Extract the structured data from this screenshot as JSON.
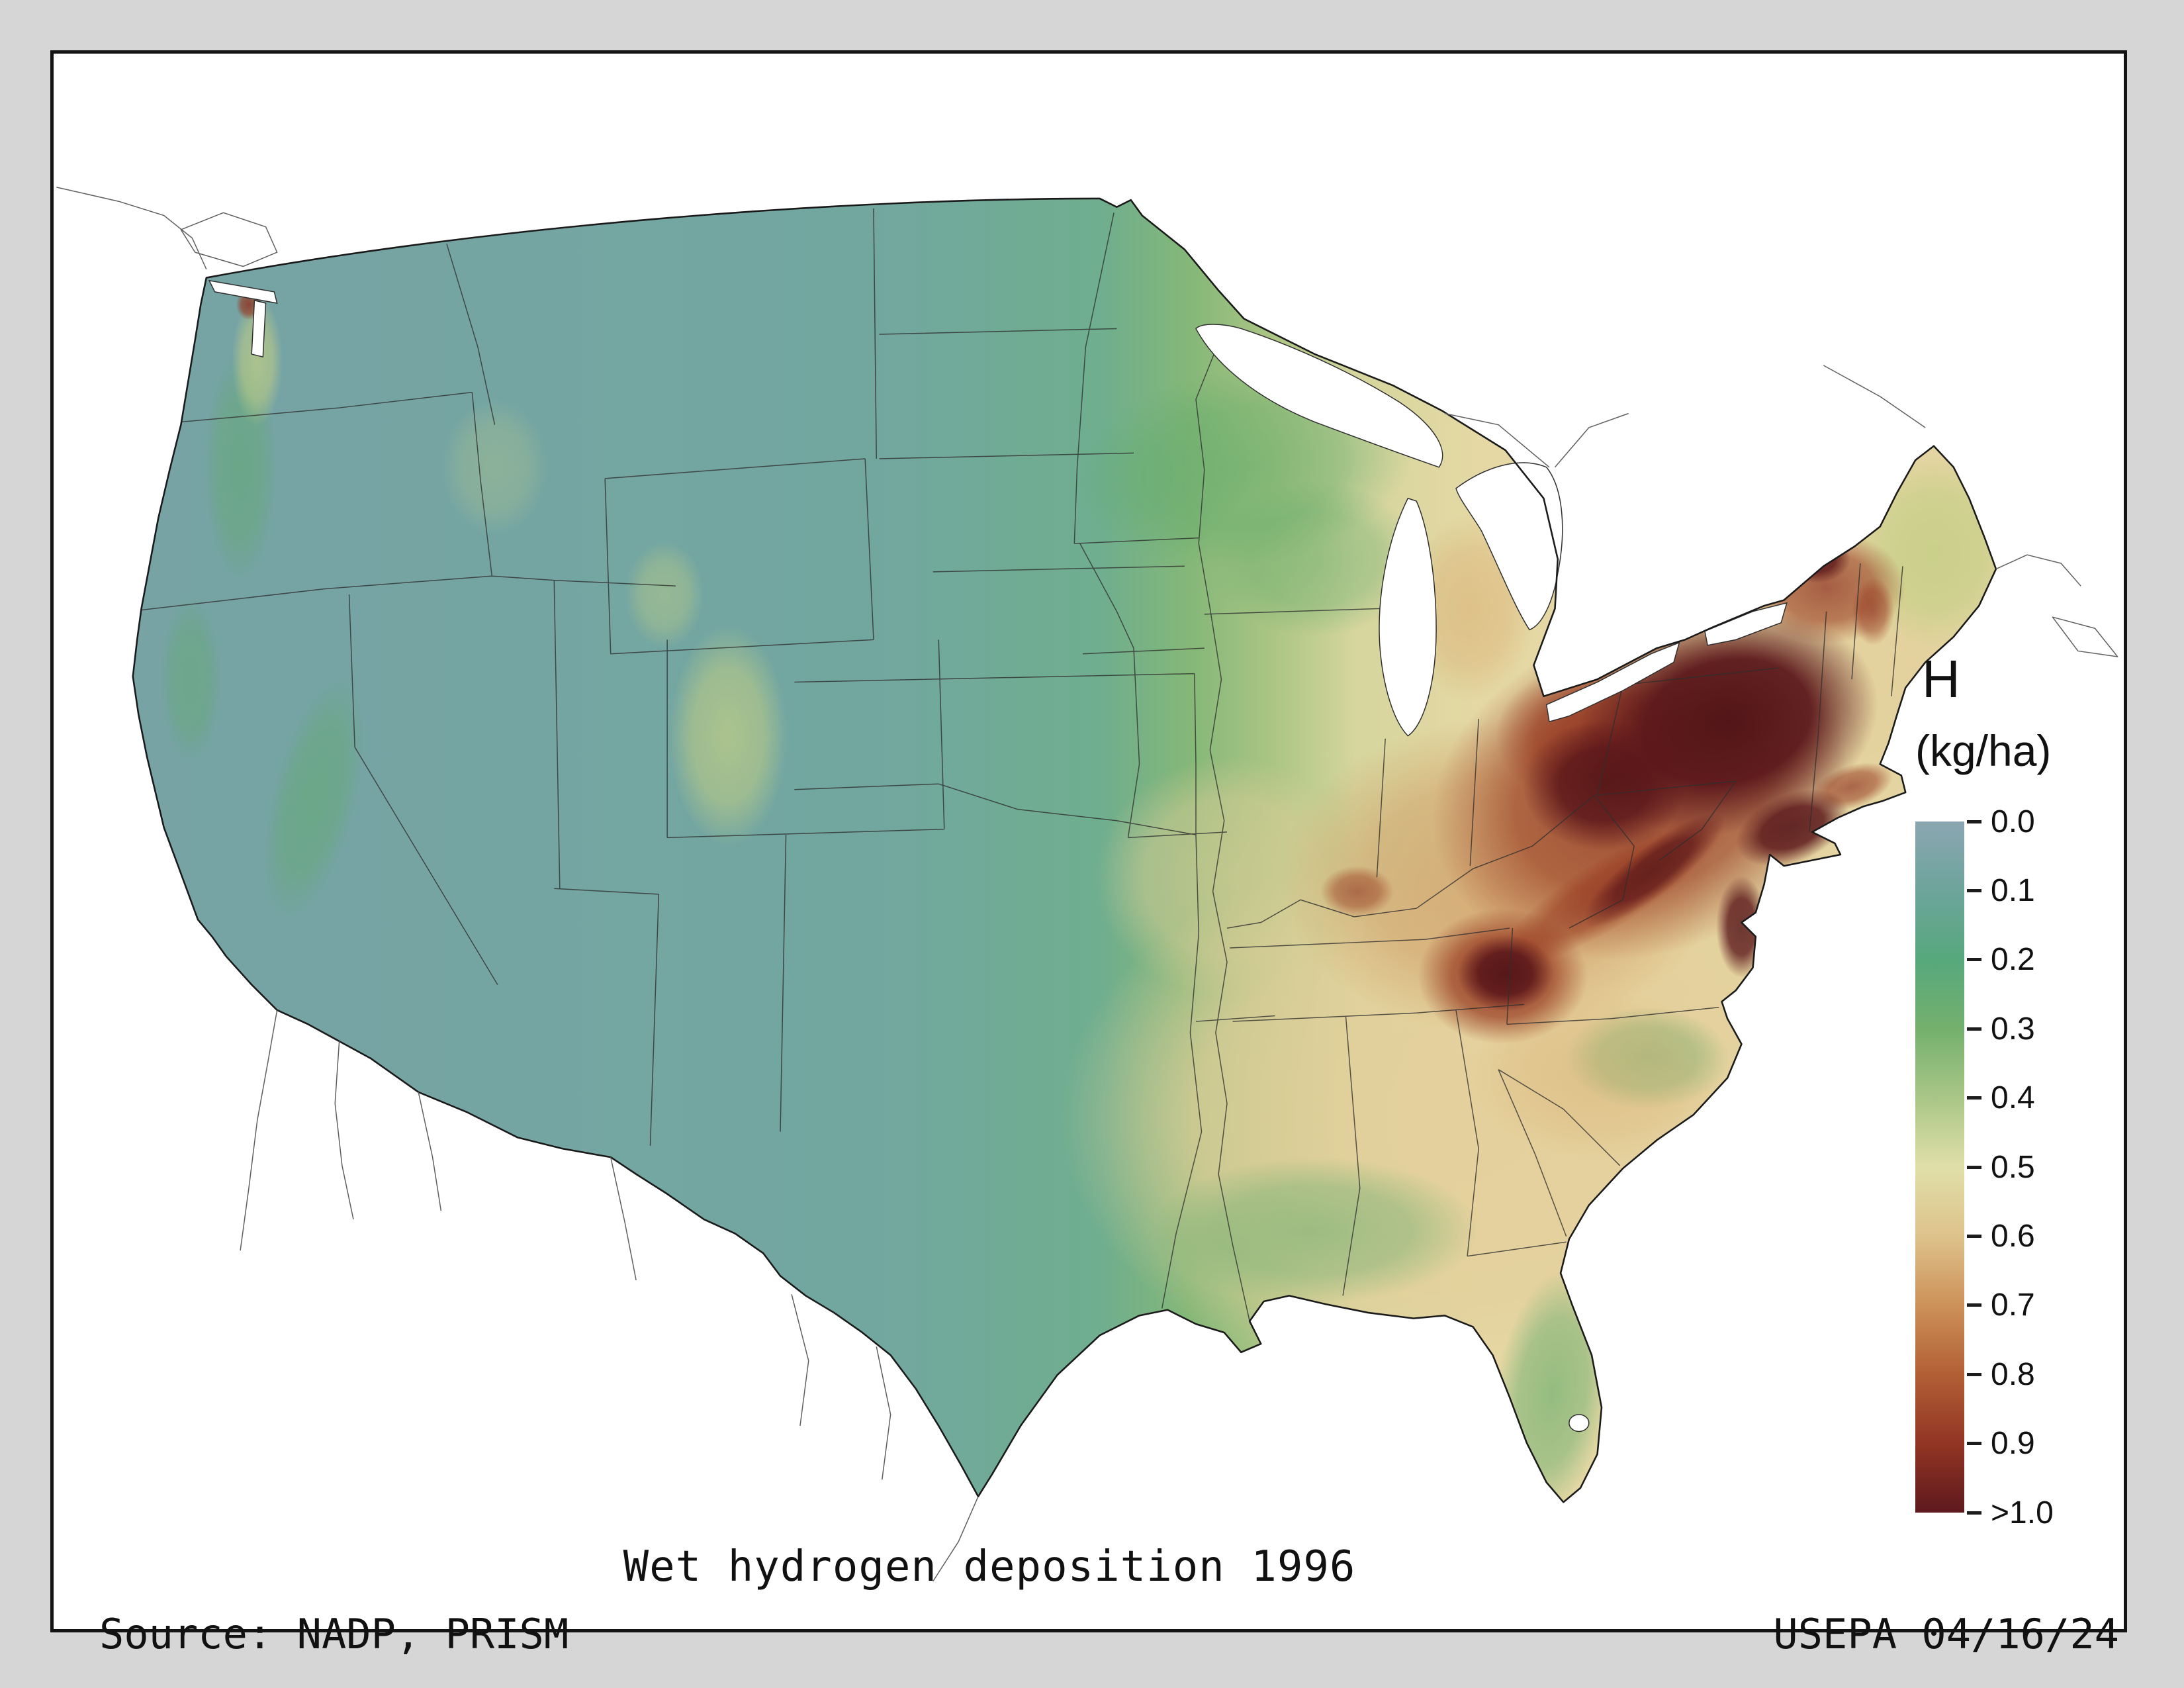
{
  "title": "Wet hydrogen deposition 1996",
  "footer": {
    "source": "Source: NADP, PRISM",
    "agency_date": "USEPA 04/16/24"
  },
  "legend": {
    "title": "H",
    "units": "(kg/ha)",
    "tick_labels": [
      "0.0",
      "0.1",
      "0.2",
      "0.3",
      "0.4",
      "0.5",
      "0.6",
      "0.7",
      "0.8",
      "0.9",
      ">1.0"
    ],
    "colors": [
      "#8ba6b2",
      "#6da49b",
      "#57a87d",
      "#74b06d",
      "#a9c687",
      "#e0dfa9",
      "#dec28b",
      "#cc9159",
      "#b25f35",
      "#923524",
      "#5e191d"
    ]
  },
  "map_colors": {
    "low_teal": "#74a4a6",
    "mid_green": "#84b778",
    "high_tan": "#e5d8a4",
    "hotspot_red": "#8c2e1e",
    "hotspot_maroon": "#4f1216",
    "water": "#ffffff",
    "boundary": "#2f2f2f"
  }
}
